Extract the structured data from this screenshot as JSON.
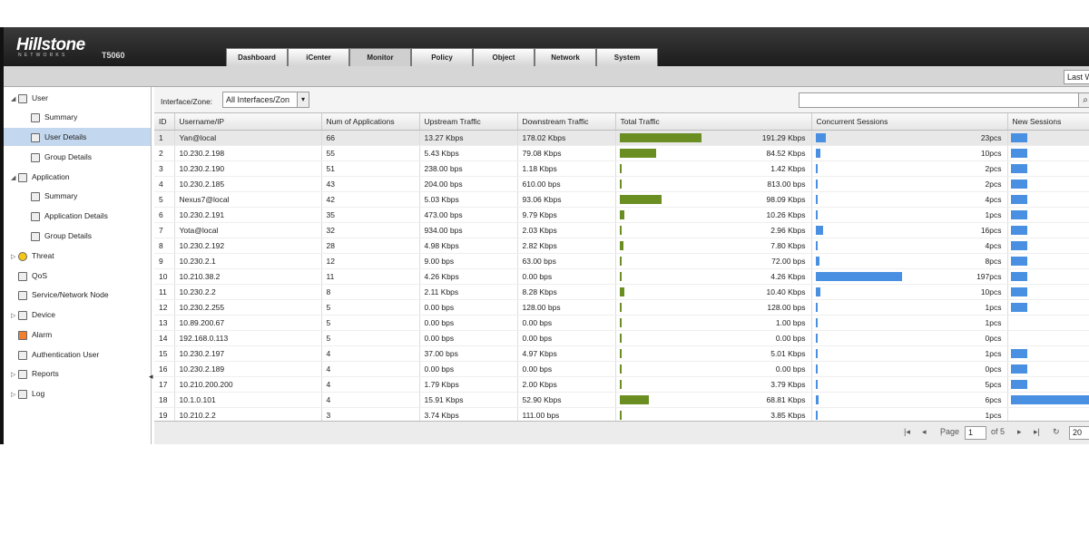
{
  "brand": {
    "logo": "Hillstone",
    "logo_sub": "NETWORKS",
    "model": "T5060"
  },
  "tabs": [
    "Dashboard",
    "iCenter",
    "Monitor",
    "Policy",
    "Object",
    "Network",
    "System"
  ],
  "active_tab": "Monitor",
  "subbar": {
    "right_label": "Last W"
  },
  "sidebar": {
    "user": "User",
    "user_summary": "Summary",
    "user_details": "User Details",
    "group_details": "Group Details",
    "application": "Application",
    "app_summary": "Summary",
    "app_details": "Application Details",
    "app_group_details": "Group Details",
    "threat": "Threat",
    "qos": "QoS",
    "service_node": "Service/Network Node",
    "device": "Device",
    "alarm": "Alarm",
    "auth_user": "Authentication User",
    "reports": "Reports",
    "log": "Log"
  },
  "filter": {
    "label": "Interface/Zone:",
    "value": "All Interfaces/Zon"
  },
  "columns": [
    "ID",
    "Username/IP",
    "Num of Applications",
    "Upstream Traffic",
    "Downstream Traffic",
    "Total Traffic",
    "Concurrent Sessions",
    "New Sessions"
  ],
  "rows": [
    {
      "id": "1",
      "user": "Yan@local",
      "apps": "66",
      "up": "13.27 Kbps",
      "down": "178.02 Kbps",
      "total": "191.29 Kbps",
      "total_kbps": 191.29,
      "conc": "23pcs",
      "conc_n": 23
    },
    {
      "id": "2",
      "user": "10.230.2.198",
      "apps": "55",
      "up": "5.43 Kbps",
      "down": "79.08 Kbps",
      "total": "84.52 Kbps",
      "total_kbps": 84.52,
      "conc": "10pcs",
      "conc_n": 10
    },
    {
      "id": "3",
      "user": "10.230.2.190",
      "apps": "51",
      "up": "238.00 bps",
      "down": "1.18 Kbps",
      "total": "1.42 Kbps",
      "total_kbps": 1.42,
      "conc": "2pcs",
      "conc_n": 2
    },
    {
      "id": "4",
      "user": "10.230.2.185",
      "apps": "43",
      "up": "204.00 bps",
      "down": "610.00 bps",
      "total": "813.00 bps",
      "total_kbps": 0.813,
      "conc": "2pcs",
      "conc_n": 2
    },
    {
      "id": "5",
      "user": "Nexus7@local",
      "apps": "42",
      "up": "5.03 Kbps",
      "down": "93.06 Kbps",
      "total": "98.09 Kbps",
      "total_kbps": 98.09,
      "conc": "4pcs",
      "conc_n": 4
    },
    {
      "id": "6",
      "user": "10.230.2.191",
      "apps": "35",
      "up": "473.00 bps",
      "down": "9.79 Kbps",
      "total": "10.26 Kbps",
      "total_kbps": 10.26,
      "conc": "1pcs",
      "conc_n": 1
    },
    {
      "id": "7",
      "user": "Yota@local",
      "apps": "32",
      "up": "934.00 bps",
      "down": "2.03 Kbps",
      "total": "2.96 Kbps",
      "total_kbps": 2.96,
      "conc": "16pcs",
      "conc_n": 16
    },
    {
      "id": "8",
      "user": "10.230.2.192",
      "apps": "28",
      "up": "4.98 Kbps",
      "down": "2.82 Kbps",
      "total": "7.80 Kbps",
      "total_kbps": 7.8,
      "conc": "4pcs",
      "conc_n": 4
    },
    {
      "id": "9",
      "user": "10.230.2.1",
      "apps": "12",
      "up": "9.00 bps",
      "down": "63.00 bps",
      "total": "72.00 bps",
      "total_kbps": 0.072,
      "conc": "8pcs",
      "conc_n": 8
    },
    {
      "id": "10",
      "user": "10.210.38.2",
      "apps": "11",
      "up": "4.26 Kbps",
      "down": "0.00 bps",
      "total": "4.26 Kbps",
      "total_kbps": 4.26,
      "conc": "197pcs",
      "conc_n": 197
    },
    {
      "id": "11",
      "user": "10.230.2.2",
      "apps": "8",
      "up": "2.11 Kbps",
      "down": "8.28 Kbps",
      "total": "10.40 Kbps",
      "total_kbps": 10.4,
      "conc": "10pcs",
      "conc_n": 10
    },
    {
      "id": "12",
      "user": "10.230.2.255",
      "apps": "5",
      "up": "0.00 bps",
      "down": "128.00 bps",
      "total": "128.00 bps",
      "total_kbps": 0.128,
      "conc": "1pcs",
      "conc_n": 1
    },
    {
      "id": "13",
      "user": "10.89.200.67",
      "apps": "5",
      "up": "0.00 bps",
      "down": "0.00 bps",
      "total": "1.00 bps",
      "total_kbps": 0.001,
      "conc": "1pcs",
      "conc_n": 1
    },
    {
      "id": "14",
      "user": "192.168.0.113",
      "apps": "5",
      "up": "0.00 bps",
      "down": "0.00 bps",
      "total": "0.00 bps",
      "total_kbps": 0,
      "conc": "0pcs",
      "conc_n": 0
    },
    {
      "id": "15",
      "user": "10.230.2.197",
      "apps": "4",
      "up": "37.00 bps",
      "down": "4.97 Kbps",
      "total": "5.01 Kbps",
      "total_kbps": 5.01,
      "conc": "1pcs",
      "conc_n": 1
    },
    {
      "id": "16",
      "user": "10.230.2.189",
      "apps": "4",
      "up": "0.00 bps",
      "down": "0.00 bps",
      "total": "0.00 bps",
      "total_kbps": 0,
      "conc": "0pcs",
      "conc_n": 0
    },
    {
      "id": "17",
      "user": "10.210.200.200",
      "apps": "4",
      "up": "1.79 Kbps",
      "down": "2.00 Kbps",
      "total": "3.79 Kbps",
      "total_kbps": 3.79,
      "conc": "5pcs",
      "conc_n": 5
    },
    {
      "id": "18",
      "user": "10.1.0.101",
      "apps": "4",
      "up": "15.91 Kbps",
      "down": "52.90 Kbps",
      "total": "68.81 Kbps",
      "total_kbps": 68.81,
      "conc": "6pcs",
      "conc_n": 6
    },
    {
      "id": "19",
      "user": "10.210.2.2",
      "apps": "3",
      "up": "3.74 Kbps",
      "down": "111.00 bps",
      "total": "3.85 Kbps",
      "total_kbps": 3.85,
      "conc": "1pcs",
      "conc_n": 1
    }
  ],
  "new_sessions_level": [
    1,
    1,
    1,
    1,
    1,
    1,
    1,
    1,
    1,
    1,
    1,
    1,
    0,
    0,
    1,
    1,
    1,
    4.8,
    0
  ],
  "pager": {
    "page_label": "Page",
    "page_value": "1",
    "of_label": "of 5",
    "page_size": "20"
  },
  "colors": {
    "traffic_bar": "#6b8e23",
    "session_bar": "#4a90e2",
    "selected_nav": "#c3d7ee"
  }
}
